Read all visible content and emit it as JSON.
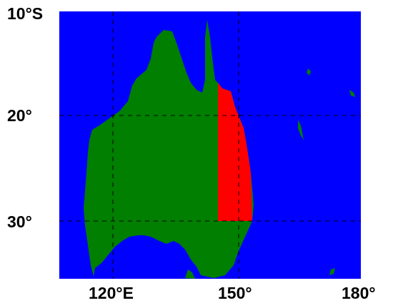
{
  "map": {
    "colors": {
      "ocean": "#0000ff",
      "land": "#007f00",
      "highlight": "#ff0000",
      "grid": "#000000"
    },
    "lat_labels": {
      "top": "10°S",
      "mid": "20°",
      "low": "30°"
    },
    "lon_labels": {
      "left": "120°E",
      "mid": "150°",
      "right": "180°"
    }
  }
}
